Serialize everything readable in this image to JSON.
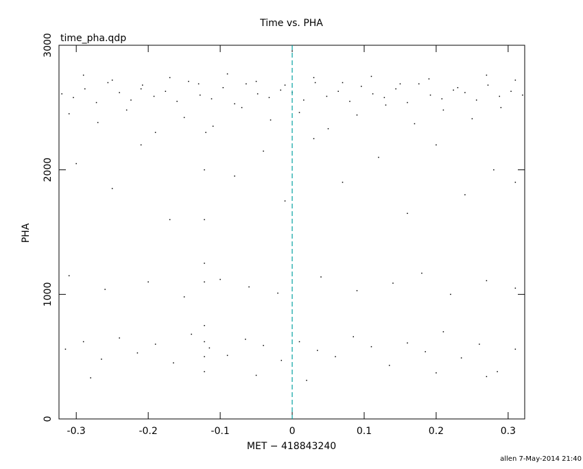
{
  "chart_data": {
    "type": "scatter",
    "title": "Time vs. PHA",
    "subtitle": "time_pha.qdp",
    "x_label": "MET − 418843240",
    "y_label": "PHA",
    "footer": "allen  7-May-2014 21:40",
    "color": "#000000",
    "xlim": [
      -0.324,
      0.323
    ],
    "ylim": [
      0,
      3000
    ],
    "xticks": [
      -0.3,
      -0.2,
      -0.1,
      0,
      0.1,
      0.2,
      0.3
    ],
    "yticks": [
      0,
      1000,
      2000,
      3000
    ],
    "reference_line": {
      "x": 0,
      "color": "#00a0a0",
      "dashed": true
    },
    "x": [
      -0.32,
      -0.304,
      -0.288,
      -0.272,
      -0.256,
      -0.24,
      -0.224,
      -0.208,
      -0.192,
      -0.176,
      -0.16,
      -0.144,
      -0.128,
      -0.112,
      -0.096,
      -0.08,
      -0.064,
      -0.048,
      -0.032,
      -0.016,
      0,
      0.016,
      0.032,
      0.048,
      0.064,
      0.08,
      0.096,
      0.112,
      0.128,
      0.144,
      0.16,
      0.176,
      0.192,
      0.208,
      0.224,
      0.24,
      0.256,
      0.272,
      0.288,
      0.304,
      0.32,
      -0.31,
      -0.29,
      -0.27,
      -0.25,
      -0.23,
      -0.21,
      -0.19,
      -0.17,
      -0.15,
      -0.13,
      -0.11,
      -0.09,
      -0.07,
      -0.05,
      -0.03,
      -0.01,
      0.01,
      0.03,
      0.05,
      0.07,
      0.09,
      0.11,
      0.13,
      0.15,
      0.17,
      0.19,
      0.21,
      0.23,
      0.25,
      0.27,
      0.29,
      0.31,
      -0.315,
      -0.29,
      -0.265,
      -0.24,
      -0.215,
      -0.19,
      -0.165,
      -0.14,
      -0.115,
      -0.09,
      -0.065,
      -0.04,
      -0.015,
      0.01,
      0.035,
      0.06,
      0.085,
      0.11,
      0.135,
      0.16,
      0.185,
      0.21,
      0.235,
      0.26,
      0.285,
      0.31,
      -0.31,
      -0.26,
      -0.2,
      -0.15,
      -0.1,
      -0.06,
      -0.02,
      0.04,
      0.09,
      0.14,
      0.18,
      0.22,
      0.27,
      0.31,
      -0.3,
      -0.25,
      -0.21,
      -0.17,
      -0.12,
      -0.08,
      -0.04,
      -0.01,
      0.03,
      0.07,
      0.12,
      0.16,
      0.2,
      0.24,
      0.28,
      0.31,
      -0.122,
      -0.122,
      -0.122,
      -0.122,
      -0.122,
      -0.122,
      -0.122,
      -0.122,
      -0.28,
      -0.05,
      0.02,
      0.2,
      0.27
    ],
    "values": [
      2610,
      2580,
      2650,
      2540,
      2700,
      2620,
      2560,
      2680,
      2590,
      2630,
      2550,
      2710,
      2600,
      2570,
      2660,
      2530,
      2690,
      2610,
      2580,
      2640,
      2620,
      2560,
      2700,
      2590,
      2630,
      2550,
      2670,
      2610,
      2580,
      2650,
      2540,
      2690,
      2600,
      2570,
      2640,
      2620,
      2560,
      2680,
      2590,
      2630,
      2600,
      2450,
      2760,
      2380,
      2720,
      2480,
      2650,
      2300,
      2740,
      2420,
      2690,
      2350,
      2770,
      2500,
      2710,
      2400,
      2680,
      2460,
      2740,
      2330,
      2700,
      2440,
      2750,
      2520,
      2690,
      2370,
      2730,
      2480,
      2660,
      2410,
      2760,
      2500,
      2720,
      560,
      620,
      480,
      650,
      530,
      600,
      450,
      680,
      570,
      510,
      640,
      590,
      470,
      620,
      550,
      500,
      660,
      580,
      430,
      610,
      540,
      700,
      490,
      600,
      380,
      560,
      1150,
      1040,
      1100,
      980,
      1120,
      1060,
      1010,
      1140,
      1030,
      1090,
      1170,
      1000,
      1110,
      1050,
      2050,
      1850,
      2200,
      1600,
      2300,
      1950,
      2150,
      1750,
      2250,
      1900,
      2100,
      1650,
      2200,
      1800,
      2000,
      1900,
      380,
      500,
      620,
      750,
      1100,
      1250,
      1600,
      2000,
      330,
      350,
      310,
      370,
      340
    ]
  }
}
